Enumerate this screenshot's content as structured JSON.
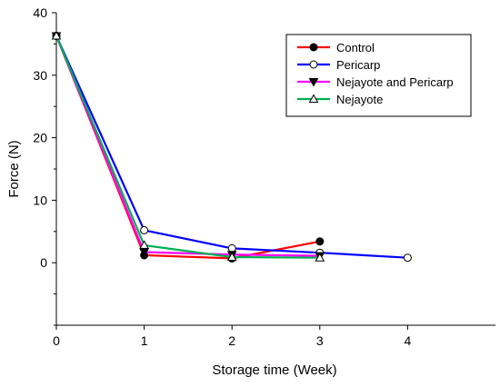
{
  "chart_data": {
    "type": "line",
    "title": "",
    "xlabel": "Storage time (Week)",
    "ylabel": "Force (N)",
    "xlim": [
      0,
      5
    ],
    "ylim": [
      -10,
      40
    ],
    "xticks": [
      0,
      1,
      2,
      3,
      4
    ],
    "yticks": [
      0,
      10,
      20,
      30,
      40
    ],
    "grid": false,
    "legend_position": "top-right",
    "series": [
      {
        "name": "Control",
        "color": "#ff0000",
        "marker": "filled-circle",
        "x": [
          0,
          1,
          2,
          3
        ],
        "y": [
          36.3,
          1.2,
          0.7,
          3.4
        ]
      },
      {
        "name": "Pericarp",
        "color": "#0000ff",
        "marker": "open-circle",
        "x": [
          0,
          1,
          2,
          3,
          4
        ],
        "y": [
          36.3,
          5.2,
          2.3,
          1.6,
          0.8
        ]
      },
      {
        "name": "Nejayote and Pericarp",
        "color": "#ff00ff",
        "marker": "filled-triangle-down",
        "x": [
          0,
          1,
          2,
          3
        ],
        "y": [
          36.3,
          1.7,
          1.3,
          1.1
        ]
      },
      {
        "name": "Nejayote",
        "color": "#00b050",
        "marker": "open-triangle-up",
        "x": [
          0,
          1,
          2,
          3
        ],
        "y": [
          36.3,
          2.8,
          0.9,
          0.8
        ]
      }
    ]
  }
}
